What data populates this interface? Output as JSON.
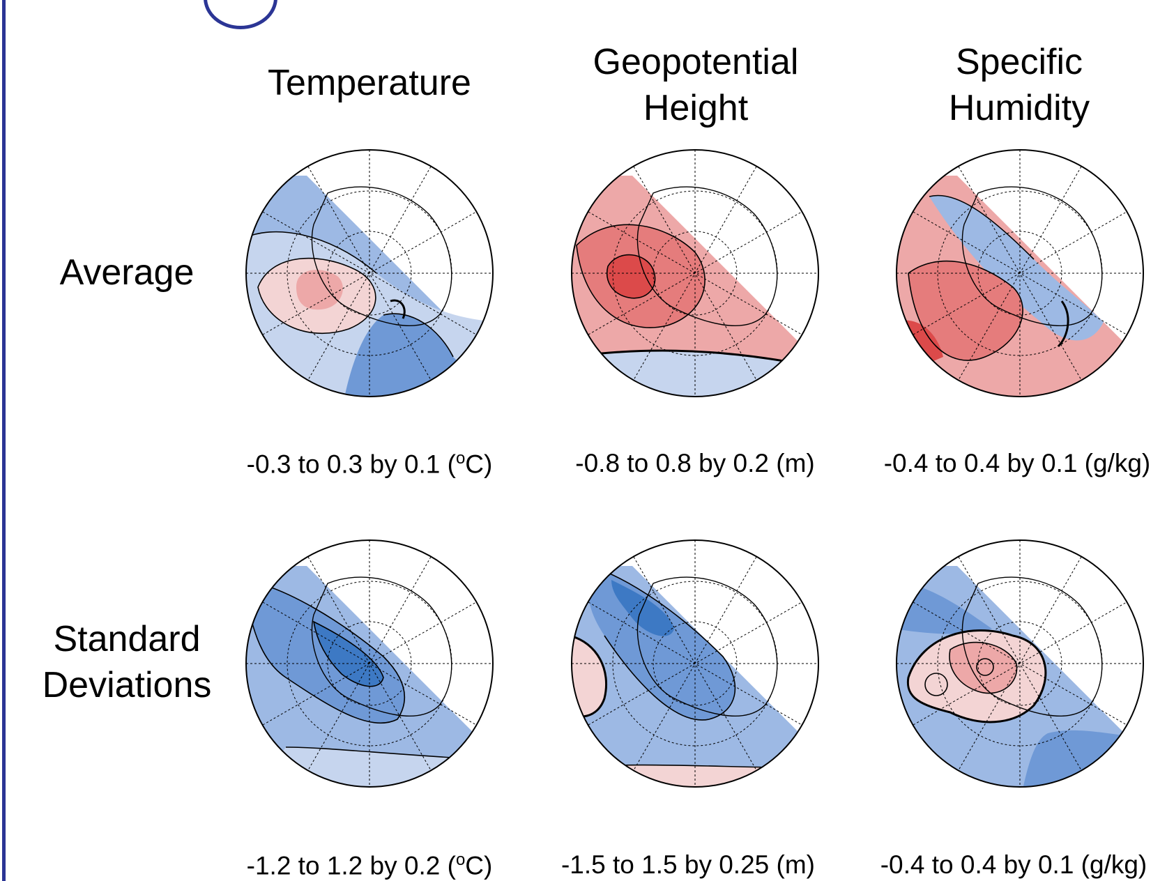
{
  "columns": [
    {
      "title_lines": [
        "Temperature"
      ]
    },
    {
      "title_lines": [
        "Geopotential",
        "Height"
      ]
    },
    {
      "title_lines": [
        "Specific",
        "Humidity"
      ]
    }
  ],
  "rows": [
    {
      "title_lines": [
        "Average"
      ]
    },
    {
      "title_lines": [
        "Standard",
        "Deviations"
      ]
    }
  ],
  "captions": {
    "avg_temperature": {
      "pre": "-0.3 to 0.3 by 0.1 (",
      "sup": "o",
      "post": "C)"
    },
    "avg_geopotential": {
      "text": "-0.8 to 0.8 by 0.2 (m)"
    },
    "avg_humidity": {
      "text": "-0.4 to 0.4 by 0.1 (g/kg)"
    },
    "std_temperature": {
      "pre": "-1.2 to 1.2 by 0.2 (",
      "sup": "o",
      "post": "C)"
    },
    "std_geopotential": {
      "text": "-1.5 to 1.5 by 0.25 (m)"
    },
    "std_humidity": {
      "text": "-0.4 to 0.4 by 0.1 (g/kg)"
    }
  },
  "colors": {
    "frame": "#2b3595",
    "blue_light": "#c6d5ee",
    "blue_mid": "#9db9e4",
    "blue_strong": "#6f99d6",
    "blue_deep": "#3d79c4",
    "red_light": "#f3d4d4",
    "red_mid": "#eda8a8",
    "red_strong": "#e57c7c",
    "red_deep": "#dc4a4a"
  }
}
